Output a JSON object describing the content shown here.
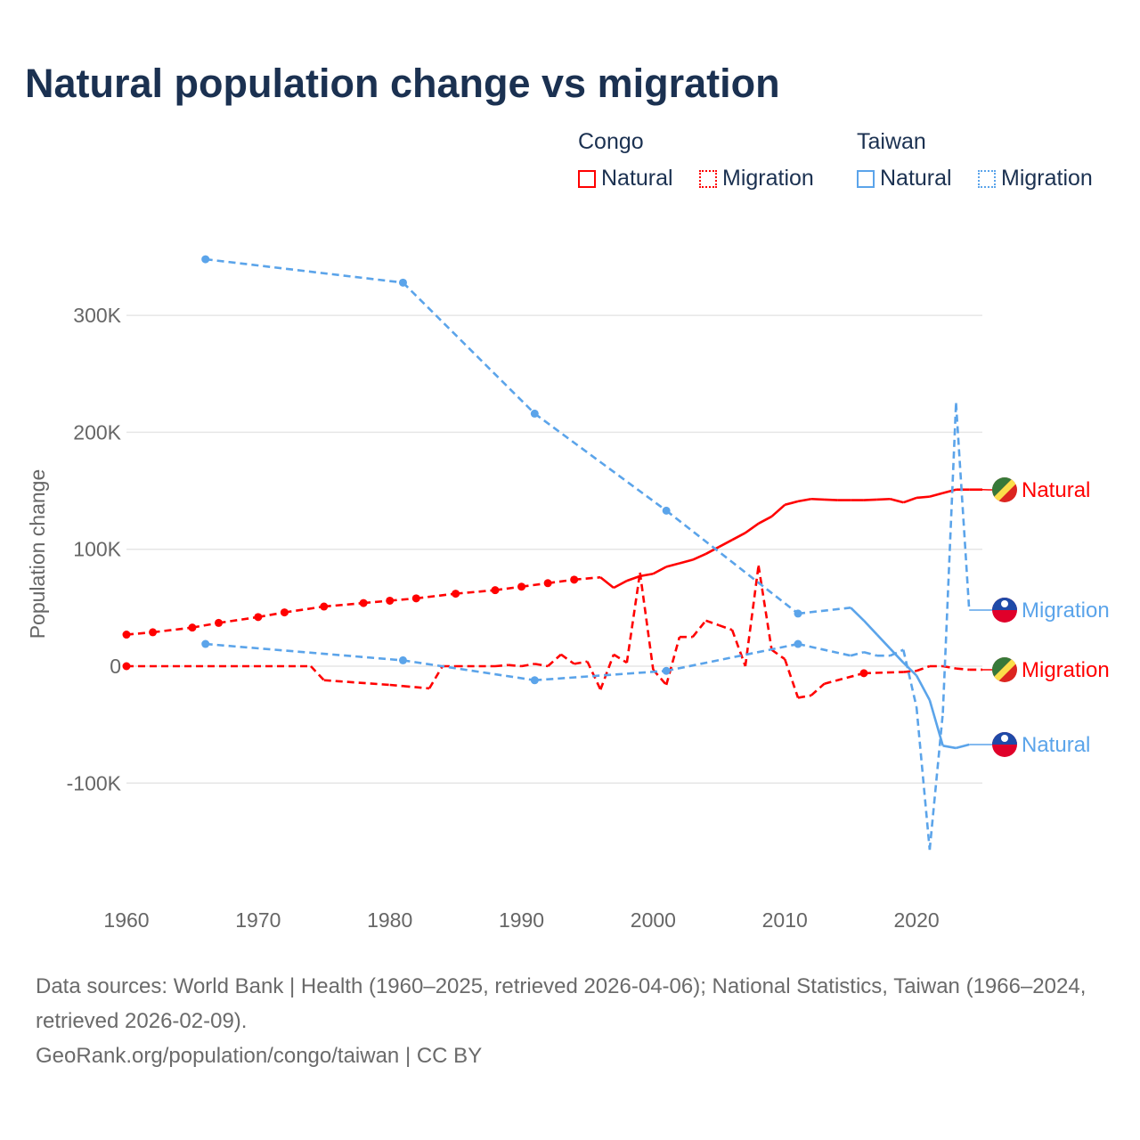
{
  "title": "Natural population change vs migration",
  "legend": {
    "groups": [
      {
        "name": "Congo",
        "items": [
          "Natural",
          "Migration"
        ],
        "color": "#ff0000"
      },
      {
        "name": "Taiwan",
        "items": [
          "Natural",
          "Migration"
        ],
        "color": "#5ba4ea"
      }
    ]
  },
  "footer": {
    "sources": "Data sources: World Bank | Health (1960–2025, retrieved 2026-04-06); National Statistics, Taiwan (1966–2024, retrieved 2026-02-09).",
    "credit": "GeoRank.org/population/congo/taiwan | CC BY"
  },
  "chart_data": {
    "type": "line",
    "title": "Natural population change vs migration",
    "xlabel": "",
    "ylabel": "Population change",
    "xlim": [
      1960,
      2025
    ],
    "ylim": [
      -170000,
      370000
    ],
    "xticks": [
      {
        "v": 1960,
        "label": "1960"
      },
      {
        "v": 1970,
        "label": "1970"
      },
      {
        "v": 1980,
        "label": "1980"
      },
      {
        "v": 1990,
        "label": "1990"
      },
      {
        "v": 2000,
        "label": "2000"
      },
      {
        "v": 2010,
        "label": "2010"
      },
      {
        "v": 2020,
        "label": "2020"
      }
    ],
    "yticks": [
      {
        "v": -100000,
        "label": "-100K"
      },
      {
        "v": 0,
        "label": "0"
      },
      {
        "v": 100000,
        "label": "100K"
      },
      {
        "v": 200000,
        "label": "200K"
      },
      {
        "v": 300000,
        "label": "300K"
      }
    ],
    "grid": true,
    "legend_placement": "top-right",
    "series": [
      {
        "name": "Congo Natural",
        "label": "Natural",
        "country": "Congo",
        "color": "#ff0000",
        "style": "solid",
        "x": [
          1960,
          1962,
          1965,
          1967,
          1970,
          1972,
          1975,
          1978,
          1980,
          1982,
          1985,
          1988,
          1990,
          1992,
          1994,
          1996,
          1997,
          1998,
          1999,
          2000,
          2001,
          2002,
          2003,
          2004,
          2005,
          2006,
          2007,
          2008,
          2009,
          2010,
          2011,
          2012,
          2013,
          2014,
          2015,
          2016,
          2017,
          2018,
          2019,
          2020,
          2021,
          2022,
          2023,
          2024,
          2025
        ],
        "y": [
          27000,
          29000,
          33000,
          37000,
          42000,
          46000,
          51000,
          54000,
          56000,
          58000,
          62000,
          65000,
          68000,
          71000,
          74000,
          76000,
          67000,
          73000,
          77000,
          79000,
          85000,
          88000,
          91000,
          96000,
          102000,
          108000,
          114000,
          122000,
          128000,
          138000,
          141000,
          143000,
          142500,
          142000,
          142000,
          142000,
          142500,
          143000,
          140000,
          144000,
          145000,
          148000,
          151000,
          151000,
          151000
        ]
      },
      {
        "name": "Congo Migration",
        "label": "Migration",
        "country": "Congo",
        "color": "#ff0000",
        "style": "dashed",
        "x": [
          1960,
          1974,
          1975,
          1980,
          1981,
          1983,
          1984,
          1985,
          1988,
          1989,
          1990,
          1991,
          1992,
          1993,
          1994,
          1995,
          1996,
          1997,
          1998,
          1999,
          2000,
          2001,
          2002,
          2003,
          2004,
          2005,
          2006,
          2007,
          2008,
          2009,
          2010,
          2011,
          2012,
          2013,
          2016,
          2019,
          2020,
          2021,
          2022,
          2023,
          2024,
          2025
        ],
        "y": [
          0,
          0,
          -12000,
          -16000,
          -17000,
          -19000,
          0,
          0,
          0,
          1000,
          0,
          2000,
          0,
          10000,
          2000,
          4000,
          -20000,
          10000,
          3000,
          80000,
          -3000,
          -16000,
          25000,
          25000,
          39000,
          35000,
          31000,
          0,
          86000,
          14000,
          6000,
          -27000,
          -25000,
          -15000,
          -6000,
          -5000,
          -4000,
          0,
          0,
          -2000,
          -3000,
          -3000
        ]
      },
      {
        "name": "Taiwan Natural",
        "label": "Natural",
        "country": "Taiwan",
        "color": "#5ba4ea",
        "style": "solid",
        "x": [
          1966,
          1981,
          1991,
          2001,
          2011,
          2015,
          2016,
          2017,
          2018,
          2019,
          2020,
          2021,
          2022,
          2023,
          2024
        ],
        "y": [
          348000,
          328000,
          216000,
          133000,
          45000,
          50000,
          39000,
          27000,
          15000,
          3000,
          -8000,
          -29000,
          -68000,
          -70000,
          -67000
        ]
      },
      {
        "name": "Taiwan Migration",
        "label": "Migration",
        "country": "Taiwan",
        "color": "#5ba4ea",
        "style": "dashed",
        "x": [
          1966,
          1981,
          1991,
          2001,
          2011,
          2015,
          2016,
          2017,
          2018,
          2019,
          2020,
          2021,
          2022,
          2023,
          2024
        ],
        "y": [
          19000,
          5000,
          -12000,
          -4000,
          19000,
          9000,
          12000,
          9000,
          9000,
          14000,
          -35000,
          -157000,
          -40000,
          225000,
          48000
        ]
      }
    ]
  }
}
